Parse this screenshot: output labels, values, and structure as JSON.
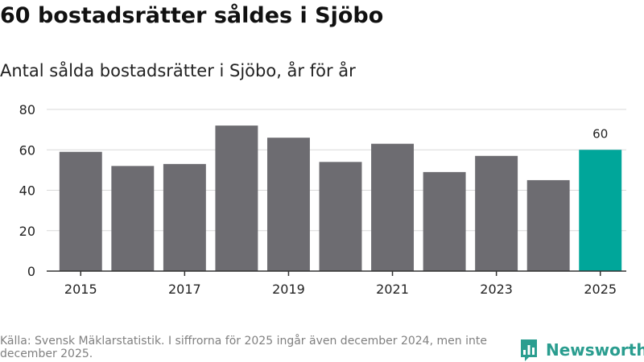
{
  "title": "60 bostadsrätter såldes i Sjöbo",
  "subtitle": "Antal sålda bostadsrätter i Sjöbo, år för år",
  "footer": "Källa: Svensk Mäklarstatistik. I siffrorna för 2025 ingår även december 2024, men inte december 2025.",
  "brand": {
    "name": "Newsworthy",
    "icon": "bar-chart-logo-icon",
    "color": "#2a9d8f"
  },
  "chart_data": {
    "type": "bar",
    "categories": [
      "2015",
      "2016",
      "2017",
      "2018",
      "2019",
      "2020",
      "2021",
      "2022",
      "2023",
      "2024",
      "2025"
    ],
    "values": [
      59,
      52,
      53,
      72,
      66,
      54,
      63,
      49,
      57,
      45,
      60
    ],
    "ylim": [
      0,
      80
    ],
    "yticks": [
      0,
      20,
      40,
      60,
      80
    ],
    "xtick_labels": [
      "2015",
      "2017",
      "2019",
      "2021",
      "2023",
      "2025"
    ],
    "highlight": {
      "category": "2025",
      "label": "60"
    },
    "grid": true,
    "colors": {
      "bar": "#6d6c71",
      "highlight": "#00a69a",
      "grid": "#d9d9d9",
      "axis": "#333333"
    }
  }
}
